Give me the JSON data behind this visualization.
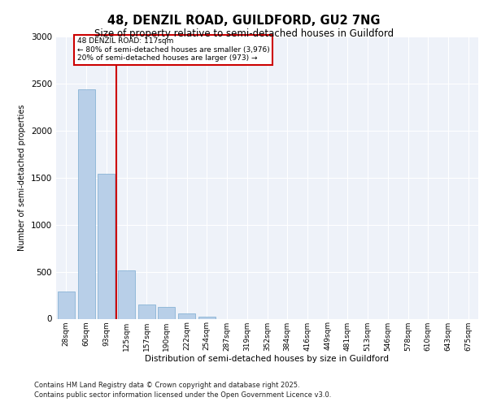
{
  "title_line1": "48, DENZIL ROAD, GUILDFORD, GU2 7NG",
  "title_line2": "Size of property relative to semi-detached houses in Guildford",
  "xlabel": "Distribution of semi-detached houses by size in Guildford",
  "ylabel": "Number of semi-detached properties",
  "categories": [
    "28sqm",
    "60sqm",
    "93sqm",
    "125sqm",
    "157sqm",
    "190sqm",
    "222sqm",
    "254sqm",
    "287sqm",
    "319sqm",
    "352sqm",
    "384sqm",
    "416sqm",
    "449sqm",
    "481sqm",
    "513sqm",
    "546sqm",
    "578sqm",
    "610sqm",
    "643sqm",
    "675sqm"
  ],
  "values": [
    290,
    2440,
    1540,
    510,
    150,
    125,
    60,
    18,
    0,
    0,
    0,
    0,
    0,
    0,
    0,
    0,
    0,
    0,
    0,
    0,
    0
  ],
  "bar_color": "#b8cfe8",
  "bar_edge_color": "#7aaad0",
  "vline_color": "#cc0000",
  "annotation_line1": "48 DENZIL ROAD: 117sqm",
  "annotation_line2": "← 80% of semi-detached houses are smaller (3,976)",
  "annotation_line3": "20% of semi-detached houses are larger (973) →",
  "annotation_box_color": "#cc0000",
  "ylim": [
    0,
    3000
  ],
  "yticks": [
    0,
    500,
    1000,
    1500,
    2000,
    2500,
    3000
  ],
  "bg_color": "#eef2f9",
  "grid_color": "#ffffff",
  "footnote1": "Contains HM Land Registry data © Crown copyright and database right 2025.",
  "footnote2": "Contains public sector information licensed under the Open Government Licence v3.0."
}
